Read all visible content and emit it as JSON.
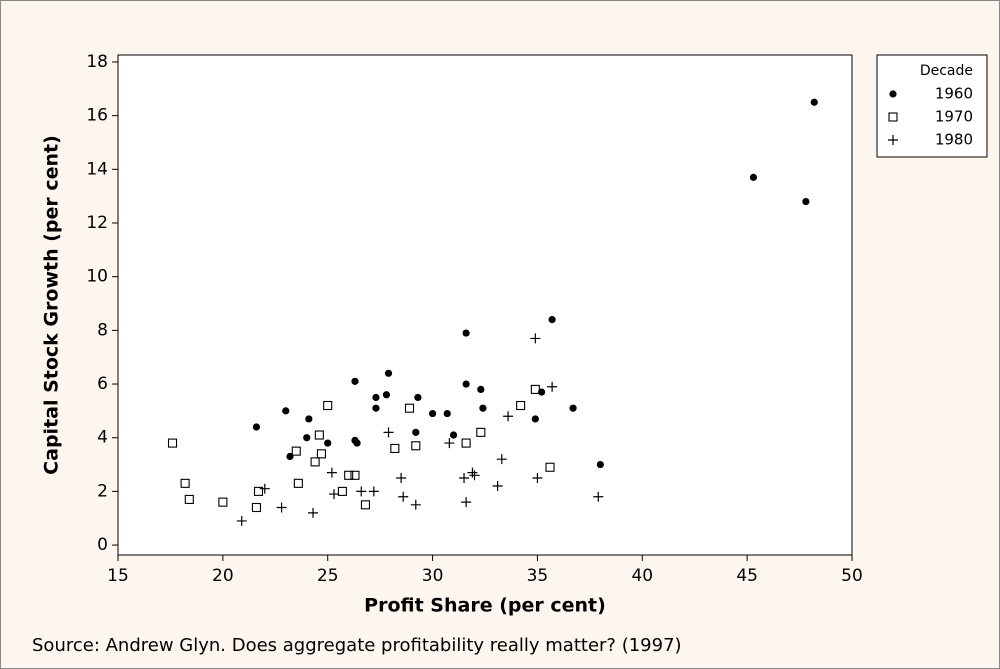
{
  "chart_data": {
    "type": "scatter",
    "xlabel": "Profit Share (per cent)",
    "ylabel": "Capital Stock Growth (per cent)",
    "source": "Source: Andrew Glyn. Does aggregate profitability really matter? (1997)",
    "legend_title": "Decade",
    "legend": "top-right",
    "xlim": [
      15,
      50
    ],
    "ylim": [
      -0.37,
      18.26
    ],
    "xticks": [
      15,
      20,
      25,
      30,
      35,
      40,
      45,
      50
    ],
    "yticks": [
      0,
      2,
      4,
      6,
      8,
      10,
      12,
      14,
      16,
      18
    ],
    "series": [
      {
        "name": "1960",
        "color": "#000000",
        "marker": "circle",
        "x": [
          21.6,
          23.0,
          23.2,
          24.0,
          24.1,
          25.0,
          26.3,
          26.3,
          26.4,
          27.3,
          27.3,
          27.8,
          27.9,
          29.2,
          29.3,
          30.0,
          30.7,
          31.0,
          31.6,
          31.6,
          32.3,
          32.4,
          34.9,
          35.2,
          35.7,
          36.7,
          38.0,
          45.3,
          47.8,
          48.2
        ],
        "values": [
          4.4,
          5.0,
          3.3,
          4.0,
          4.7,
          3.8,
          6.1,
          3.9,
          3.8,
          5.5,
          5.1,
          5.6,
          6.4,
          4.2,
          5.5,
          4.9,
          4.9,
          4.1,
          7.9,
          6.0,
          5.8,
          5.1,
          4.7,
          5.7,
          8.4,
          5.1,
          3.0,
          13.7,
          12.8,
          16.5
        ]
      },
      {
        "name": "1970",
        "color": "#000000",
        "marker": "square",
        "x": [
          17.6,
          18.2,
          18.4,
          20.0,
          21.6,
          21.7,
          23.5,
          23.6,
          24.4,
          24.6,
          24.7,
          25.0,
          25.7,
          26.0,
          26.3,
          26.8,
          28.2,
          28.9,
          29.2,
          31.6,
          32.3,
          34.2,
          34.9,
          35.6
        ],
        "values": [
          3.8,
          2.3,
          1.7,
          1.6,
          1.4,
          2.0,
          3.5,
          2.3,
          3.1,
          4.1,
          3.4,
          5.2,
          2.0,
          2.6,
          2.6,
          1.5,
          3.6,
          5.1,
          3.7,
          3.8,
          4.2,
          5.2,
          5.8,
          2.9
        ]
      },
      {
        "name": "1980",
        "color": "#000000",
        "marker": "plus",
        "x": [
          20.9,
          22.0,
          22.8,
          24.3,
          25.2,
          25.3,
          26.6,
          27.2,
          27.9,
          28.5,
          28.6,
          29.2,
          30.8,
          31.5,
          31.6,
          31.9,
          32.0,
          33.1,
          33.3,
          33.6,
          34.9,
          35.0,
          35.7,
          37.9
        ],
        "values": [
          0.9,
          2.1,
          1.4,
          1.2,
          2.7,
          1.9,
          2.0,
          2.0,
          4.2,
          2.5,
          1.8,
          1.5,
          3.8,
          2.5,
          1.6,
          2.7,
          2.6,
          2.2,
          3.2,
          4.8,
          7.7,
          2.5,
          5.9,
          1.8
        ]
      }
    ]
  }
}
